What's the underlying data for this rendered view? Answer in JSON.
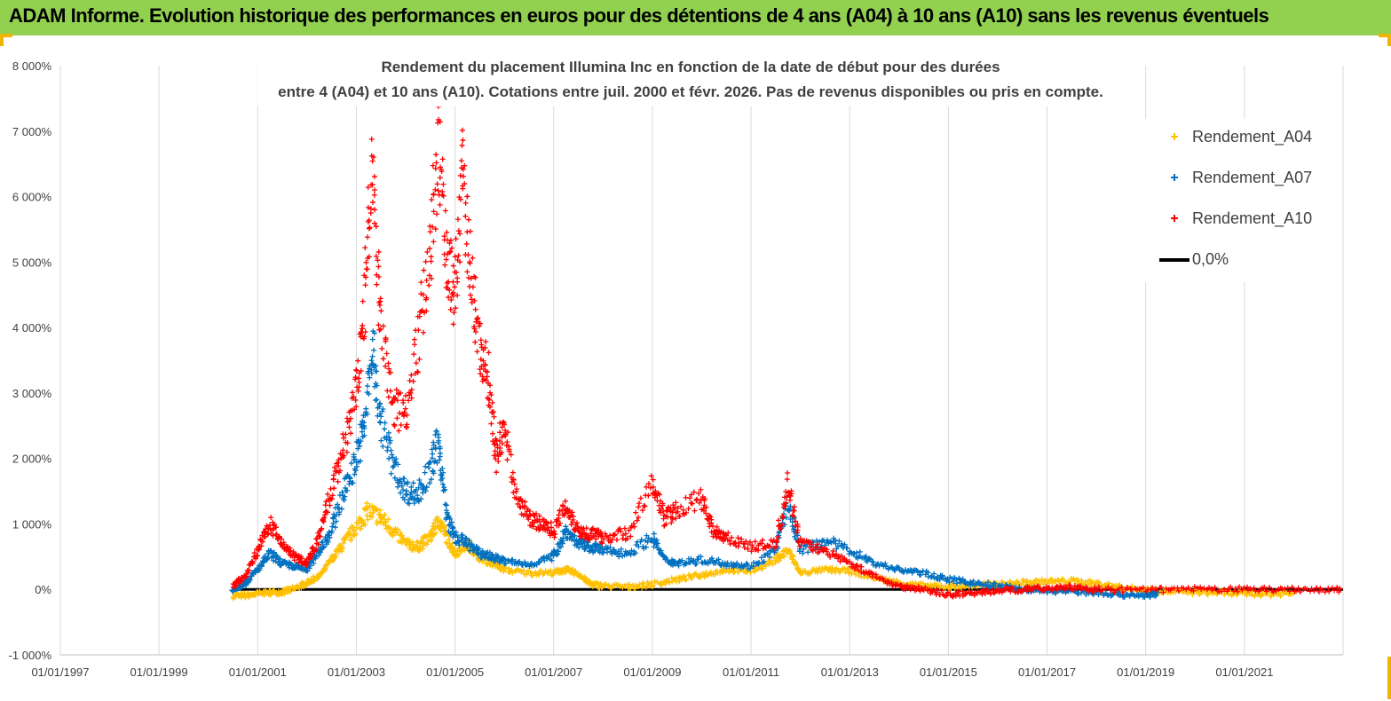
{
  "banner": {
    "title": "ADAM Informe. Evolution historique des performances en euros pour des détentions de 4 ans (A04) à 10 ans (A10) sans les revenus éventuels"
  },
  "colors": {
    "banner_bg": "#92d050",
    "corner_accent": "#f0b400",
    "A04": "#ffc000",
    "A07": "#0070c0",
    "A10": "#ff0000",
    "zero_line": "#000000"
  },
  "chart_data": {
    "type": "scatter",
    "title_lines": [
      "Rendement du placement Illumina Inc en fonction de la date de début pour des durées",
      "entre 4 (A04) et 10 ans (A10). Cotations entre juil. 2000 et févr. 2026. Pas de revenus disponibles ou pris en compte."
    ],
    "x_axis": {
      "type": "date",
      "range": [
        "1997-01-01",
        "2023-01-01"
      ],
      "tick_labels": [
        "01/01/1997",
        "01/01/1999",
        "01/01/2001",
        "01/01/2003",
        "01/01/2005",
        "01/01/2007",
        "01/01/2009",
        "01/01/2011",
        "01/01/2013",
        "01/01/2015",
        "01/01/2017",
        "01/01/2019",
        "01/01/2021"
      ]
    },
    "y_axis": {
      "unit": "%",
      "range": [
        -1000,
        8000
      ],
      "tick_values": [
        -1000,
        0,
        1000,
        2000,
        3000,
        4000,
        5000,
        6000,
        7000,
        8000
      ],
      "tick_labels": [
        "-1 000%",
        "0%",
        "1 000%",
        "2 000%",
        "3 000%",
        "4 000%",
        "5 000%",
        "6 000%",
        "7 000%",
        "8 000%"
      ]
    },
    "grid": "vertical",
    "legend_position": "top-right",
    "series": [
      {
        "name": "Rendement_A04",
        "key": "A04",
        "marker": "plus",
        "points": [
          [
            "2000-07-01",
            -100
          ],
          [
            "2000-11-01",
            -90
          ],
          [
            "2001-03-01",
            -50
          ],
          [
            "2001-07-01",
            -40
          ],
          [
            "2001-10-01",
            10
          ],
          [
            "2002-01-01",
            100
          ],
          [
            "2002-04-01",
            200
          ],
          [
            "2002-07-01",
            450
          ],
          [
            "2002-10-01",
            700
          ],
          [
            "2003-01-01",
            950
          ],
          [
            "2003-04-01",
            1200
          ],
          [
            "2003-07-01",
            1100
          ],
          [
            "2003-10-01",
            900
          ],
          [
            "2004-01-01",
            700
          ],
          [
            "2004-04-01",
            650
          ],
          [
            "2004-07-01",
            800
          ],
          [
            "2004-09-01",
            1050
          ],
          [
            "2004-11-01",
            800
          ],
          [
            "2005-01-01",
            550
          ],
          [
            "2005-04-01",
            700
          ],
          [
            "2005-07-01",
            500
          ],
          [
            "2005-10-01",
            400
          ],
          [
            "2006-01-01",
            300
          ],
          [
            "2006-07-01",
            250
          ],
          [
            "2007-01-01",
            260
          ],
          [
            "2007-04-01",
            300
          ],
          [
            "2007-07-01",
            240
          ],
          [
            "2007-10-01",
            80
          ],
          [
            "2008-01-01",
            50
          ],
          [
            "2008-07-01",
            40
          ],
          [
            "2009-01-01",
            80
          ],
          [
            "2009-07-01",
            150
          ],
          [
            "2010-01-01",
            220
          ],
          [
            "2010-07-01",
            300
          ],
          [
            "2011-01-01",
            280
          ],
          [
            "2011-07-01",
            450
          ],
          [
            "2011-10-01",
            600
          ],
          [
            "2012-01-01",
            250
          ],
          [
            "2012-07-01",
            300
          ],
          [
            "2013-01-01",
            280
          ],
          [
            "2013-07-01",
            180
          ],
          [
            "2014-01-01",
            100
          ],
          [
            "2014-07-01",
            50
          ],
          [
            "2015-01-01",
            40
          ],
          [
            "2015-07-01",
            60
          ],
          [
            "2016-01-01",
            80
          ],
          [
            "2016-07-01",
            100
          ],
          [
            "2017-01-01",
            120
          ],
          [
            "2017-07-01",
            130
          ],
          [
            "2018-01-01",
            90
          ],
          [
            "2018-07-01",
            30
          ],
          [
            "2019-01-01",
            -10
          ],
          [
            "2019-07-01",
            -30
          ],
          [
            "2020-01-01",
            -40
          ],
          [
            "2020-07-01",
            -50
          ],
          [
            "2021-01-01",
            -60
          ],
          [
            "2021-07-01",
            -70
          ],
          [
            "2022-01-01",
            -60
          ]
        ]
      },
      {
        "name": "Rendement_A07",
        "key": "A07",
        "marker": "plus",
        "points": [
          [
            "2000-07-01",
            0
          ],
          [
            "2000-10-01",
            100
          ],
          [
            "2001-01-01",
            300
          ],
          [
            "2001-04-01",
            550
          ],
          [
            "2001-07-01",
            400
          ],
          [
            "2001-10-01",
            350
          ],
          [
            "2002-01-01",
            300
          ],
          [
            "2002-04-01",
            600
          ],
          [
            "2002-07-01",
            900
          ],
          [
            "2002-10-01",
            1500
          ],
          [
            "2003-01-01",
            2000
          ],
          [
            "2003-03-01",
            2500
          ],
          [
            "2003-05-01",
            3700
          ],
          [
            "2003-07-01",
            2600
          ],
          [
            "2003-10-01",
            1900
          ],
          [
            "2004-01-01",
            1500
          ],
          [
            "2004-04-01",
            1450
          ],
          [
            "2004-07-01",
            1800
          ],
          [
            "2004-09-01",
            2300
          ],
          [
            "2004-11-01",
            1100
          ],
          [
            "2005-01-01",
            800
          ],
          [
            "2005-04-01",
            700
          ],
          [
            "2005-07-01",
            550
          ],
          [
            "2005-10-01",
            500
          ],
          [
            "2006-01-01",
            430
          ],
          [
            "2006-07-01",
            380
          ],
          [
            "2007-01-01",
            500
          ],
          [
            "2007-04-01",
            900
          ],
          [
            "2007-07-01",
            700
          ],
          [
            "2007-10-01",
            650
          ],
          [
            "2008-01-01",
            600
          ],
          [
            "2008-07-01",
            550
          ],
          [
            "2009-01-01",
            800
          ],
          [
            "2009-04-01",
            450
          ],
          [
            "2009-07-01",
            400
          ],
          [
            "2010-01-01",
            450
          ],
          [
            "2010-07-01",
            400
          ],
          [
            "2011-01-01",
            350
          ],
          [
            "2011-07-01",
            600
          ],
          [
            "2011-10-01",
            1300
          ],
          [
            "2012-01-01",
            600
          ],
          [
            "2012-07-01",
            750
          ],
          [
            "2013-01-01",
            600
          ],
          [
            "2013-07-01",
            400
          ],
          [
            "2014-01-01",
            300
          ],
          [
            "2014-07-01",
            250
          ],
          [
            "2015-01-01",
            150
          ],
          [
            "2015-07-01",
            100
          ],
          [
            "2016-01-01",
            50
          ],
          [
            "2016-07-01",
            0
          ],
          [
            "2017-01-01",
            -20
          ],
          [
            "2017-07-01",
            -30
          ],
          [
            "2018-01-01",
            -50
          ],
          [
            "2018-07-01",
            -80
          ],
          [
            "2019-01-01",
            -90
          ],
          [
            "2019-04-01",
            -60
          ]
        ]
      },
      {
        "name": "Rendement_A10",
        "key": "A10",
        "marker": "plus",
        "points": [
          [
            "2000-07-01",
            50
          ],
          [
            "2000-10-01",
            200
          ],
          [
            "2001-01-01",
            600
          ],
          [
            "2001-04-01",
            1000
          ],
          [
            "2001-07-01",
            700
          ],
          [
            "2001-10-01",
            500
          ],
          [
            "2002-01-01",
            400
          ],
          [
            "2002-04-01",
            800
          ],
          [
            "2002-07-01",
            1500
          ],
          [
            "2002-10-01",
            2200
          ],
          [
            "2003-01-01",
            3000
          ],
          [
            "2003-03-01",
            4300
          ],
          [
            "2003-05-01",
            6500
          ],
          [
            "2003-07-01",
            4000
          ],
          [
            "2003-10-01",
            2800
          ],
          [
            "2004-01-01",
            2700
          ],
          [
            "2004-04-01",
            3800
          ],
          [
            "2004-07-01",
            5200
          ],
          [
            "2004-09-01",
            6800
          ],
          [
            "2004-11-01",
            5000
          ],
          [
            "2005-01-01",
            4500
          ],
          [
            "2005-03-01",
            6400
          ],
          [
            "2005-05-01",
            4700
          ],
          [
            "2005-07-01",
            3700
          ],
          [
            "2005-09-01",
            3300
          ],
          [
            "2005-11-01",
            2000
          ],
          [
            "2006-01-01",
            2500
          ],
          [
            "2006-04-01",
            1400
          ],
          [
            "2006-07-01",
            1100
          ],
          [
            "2006-10-01",
            1000
          ],
          [
            "2007-01-01",
            900
          ],
          [
            "2007-04-01",
            1300
          ],
          [
            "2007-07-01",
            900
          ],
          [
            "2007-10-01",
            850
          ],
          [
            "2008-01-01",
            800
          ],
          [
            "2008-07-01",
            850
          ],
          [
            "2009-01-01",
            1600
          ],
          [
            "2009-04-01",
            1100
          ],
          [
            "2009-07-01",
            1200
          ],
          [
            "2010-01-01",
            1400
          ],
          [
            "2010-04-01",
            900
          ],
          [
            "2010-07-01",
            800
          ],
          [
            "2011-01-01",
            650
          ],
          [
            "2011-07-01",
            700
          ],
          [
            "2011-10-01",
            1600
          ],
          [
            "2012-01-01",
            700
          ],
          [
            "2012-07-01",
            600
          ],
          [
            "2013-01-01",
            400
          ],
          [
            "2013-07-01",
            200
          ],
          [
            "2014-01-01",
            50
          ],
          [
            "2014-07-01",
            0
          ],
          [
            "2015-01-01",
            -80
          ],
          [
            "2015-07-01",
            -60
          ],
          [
            "2016-01-01",
            -20
          ],
          [
            "2016-07-01",
            0
          ],
          [
            "2017-01-01",
            20
          ],
          [
            "2017-07-01",
            30
          ],
          [
            "2018-01-01",
            0
          ],
          [
            "2019-01-01",
            -10
          ],
          [
            "2020-01-01",
            0
          ],
          [
            "2021-01-01",
            0
          ],
          [
            "2022-01-01",
            0
          ],
          [
            "2023-01-01",
            0
          ]
        ]
      },
      {
        "name": "0,0%",
        "key": "zero",
        "marker": "line",
        "points": [
          [
            "2000-07-01",
            0
          ],
          [
            "2023-01-01",
            0
          ]
        ]
      }
    ]
  }
}
